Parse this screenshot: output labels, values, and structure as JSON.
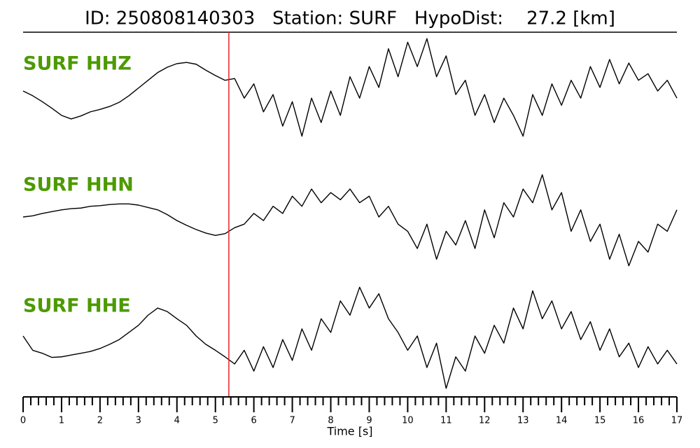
{
  "chart_data": {
    "type": "line",
    "title": "ID: 250808140303   Station: SURF   HypoDist:    27.2 [km]",
    "x_label": "Time [s]",
    "xlim": [
      0,
      17
    ],
    "xticks": [
      0,
      1,
      2,
      3,
      4,
      5,
      6,
      7,
      8,
      9,
      10,
      11,
      12,
      13,
      14,
      15,
      16,
      17
    ],
    "minor_divisions": 5,
    "pick_time": 5.35,
    "pick_color": "#e8222a",
    "label_color": "#4c9a00",
    "ylim": [
      -1,
      1
    ],
    "x": [
      0,
      0.25,
      0.5,
      0.75,
      1,
      1.25,
      1.5,
      1.75,
      2,
      2.25,
      2.5,
      2.75,
      3,
      3.25,
      3.5,
      3.75,
      4,
      4.25,
      4.5,
      4.75,
      5,
      5.25,
      5.5,
      5.75,
      6,
      6.25,
      6.5,
      6.75,
      7,
      7.25,
      7.5,
      7.75,
      8,
      8.25,
      8.5,
      8.75,
      9,
      9.25,
      9.5,
      9.75,
      10,
      10.25,
      10.5,
      10.75,
      11,
      11.25,
      11.5,
      11.75,
      12,
      12.25,
      12.5,
      12.75,
      13,
      13.25,
      13.5,
      13.75,
      14,
      14.25,
      14.5,
      14.75,
      15,
      15.25,
      15.5,
      15.75,
      16,
      16.25,
      16.5,
      16.75,
      17
    ],
    "series": [
      {
        "name": "SURF HHZ",
        "color": "#000000",
        "values": [
          0,
          -0.08,
          -0.18,
          -0.29,
          -0.41,
          -0.47,
          -0.42,
          -0.35,
          -0.31,
          -0.26,
          -0.19,
          -0.08,
          0.05,
          0.18,
          0.31,
          0.4,
          0.46,
          0.48,
          0.45,
          0.35,
          0.26,
          0.18,
          0.21,
          -0.12,
          0.12,
          -0.35,
          -0.06,
          -0.59,
          -0.18,
          -0.76,
          -0.12,
          -0.53,
          0,
          -0.41,
          0.24,
          -0.12,
          0.41,
          0.06,
          0.71,
          0.24,
          0.82,
          0.41,
          0.88,
          0.24,
          0.59,
          -0.06,
          0.18,
          -0.41,
          -0.06,
          -0.53,
          -0.12,
          -0.41,
          -0.76,
          -0.06,
          -0.41,
          0.12,
          -0.24,
          0.18,
          -0.12,
          0.41,
          0.06,
          0.53,
          0.12,
          0.47,
          0.18,
          0.29,
          0,
          0.18,
          -0.12
        ]
      },
      {
        "name": "SURF HHN",
        "color": "#000000",
        "values": [
          0,
          0.02,
          0.06,
          0.09,
          0.12,
          0.14,
          0.15,
          0.18,
          0.19,
          0.21,
          0.22,
          0.22,
          0.2,
          0.16,
          0.12,
          0.04,
          -0.06,
          -0.14,
          -0.21,
          -0.27,
          -0.31,
          -0.28,
          -0.18,
          -0.12,
          0.06,
          -0.06,
          0.18,
          0.06,
          0.35,
          0.18,
          0.47,
          0.24,
          0.41,
          0.29,
          0.47,
          0.24,
          0.35,
          0,
          0.18,
          -0.12,
          -0.24,
          -0.53,
          -0.12,
          -0.71,
          -0.24,
          -0.47,
          -0.06,
          -0.53,
          0.12,
          -0.35,
          0.24,
          0,
          0.47,
          0.24,
          0.71,
          0.12,
          0.41,
          -0.24,
          0.12,
          -0.41,
          -0.12,
          -0.71,
          -0.29,
          -0.82,
          -0.41,
          -0.59,
          -0.12,
          -0.24,
          0.12
        ]
      },
      {
        "name": "SURF HHE",
        "color": "#000000",
        "values": [
          0,
          -0.24,
          -0.29,
          -0.36,
          -0.35,
          -0.32,
          -0.29,
          -0.26,
          -0.21,
          -0.14,
          -0.06,
          0.06,
          0.18,
          0.35,
          0.47,
          0.41,
          0.29,
          0.18,
          0,
          -0.14,
          -0.24,
          -0.35,
          -0.47,
          -0.24,
          -0.59,
          -0.18,
          -0.53,
          -0.06,
          -0.41,
          0.12,
          -0.24,
          0.29,
          0.06,
          0.59,
          0.35,
          0.82,
          0.47,
          0.71,
          0.29,
          0.06,
          -0.24,
          0,
          -0.53,
          -0.12,
          -0.88,
          -0.35,
          -0.59,
          0,
          -0.29,
          0.18,
          -0.12,
          0.47,
          0.12,
          0.76,
          0.29,
          0.59,
          0.12,
          0.41,
          -0.06,
          0.24,
          -0.24,
          0.12,
          -0.35,
          -0.12,
          -0.53,
          -0.18,
          -0.47,
          -0.24,
          -0.47
        ]
      }
    ]
  }
}
